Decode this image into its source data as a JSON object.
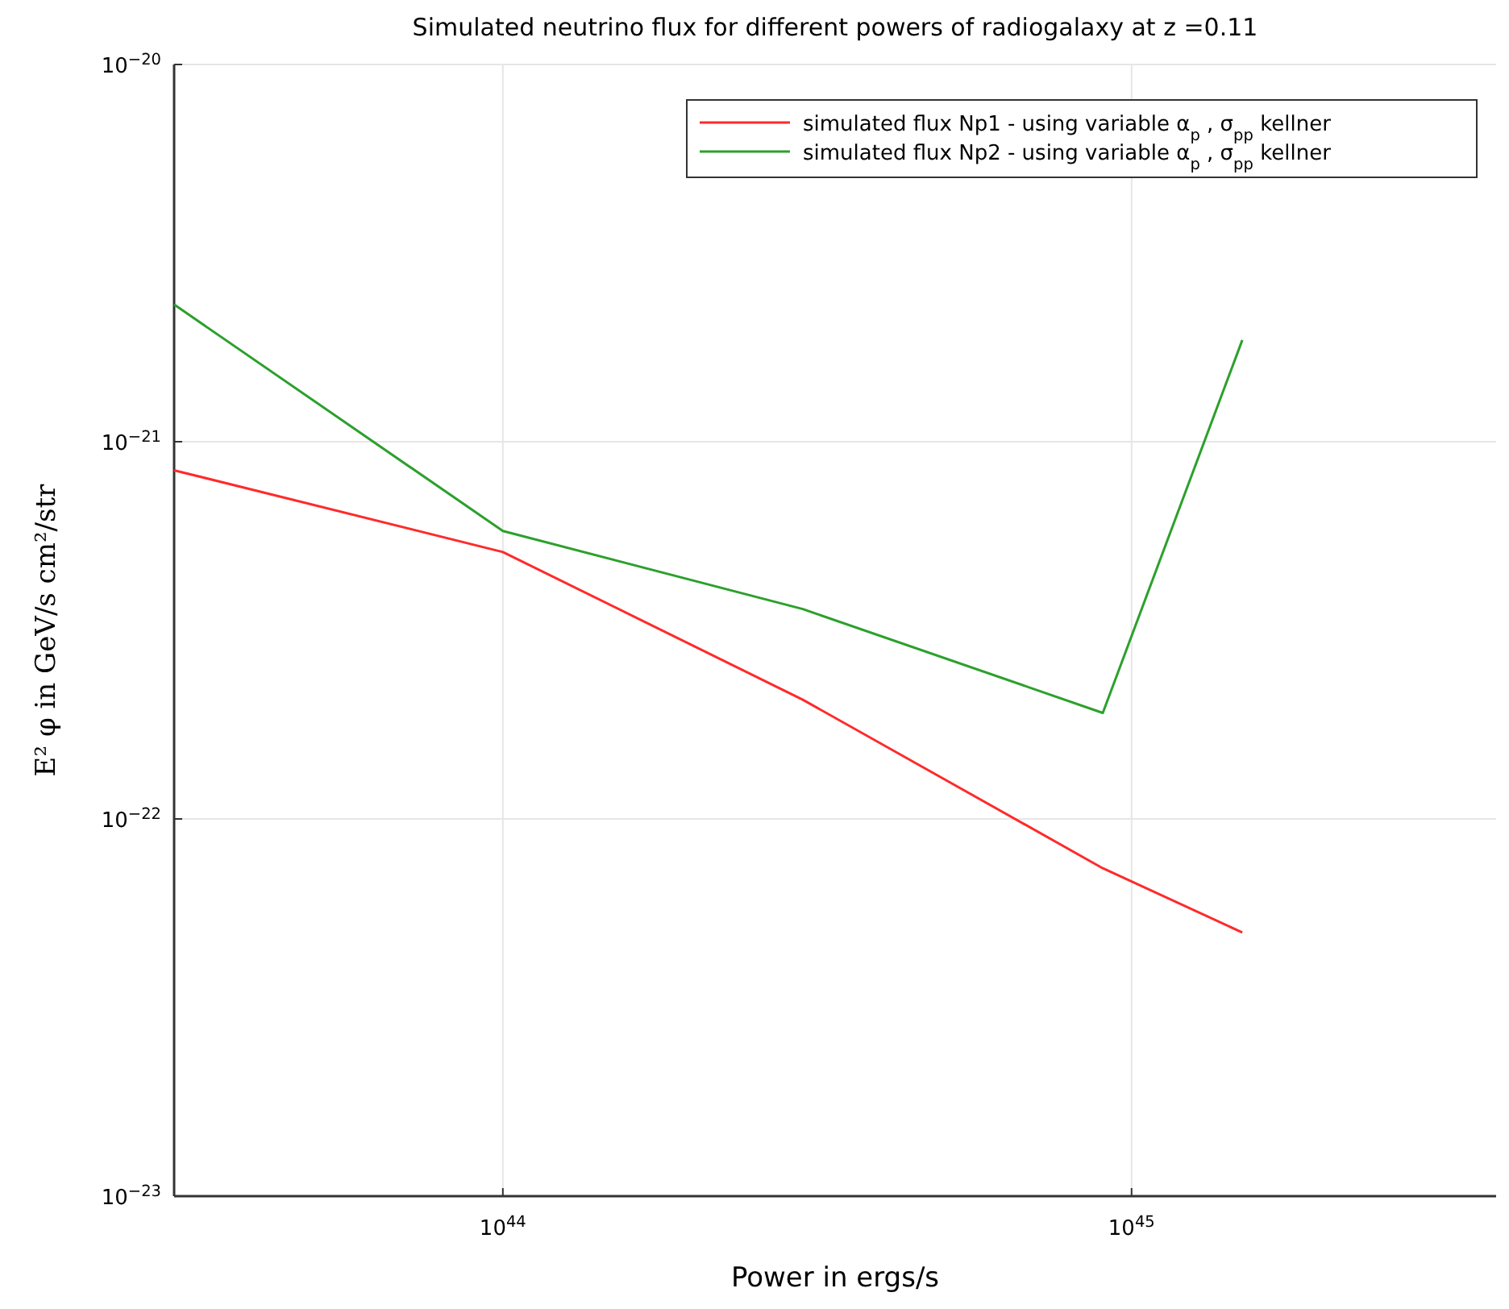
{
  "chart_data": {
    "type": "line",
    "title": "Simulated neutrino flux for different powers of radiogalaxy at z =0.11",
    "xlabel": "Power in ergs/s",
    "ylabel": "E² φ in GeV/s cm²/str",
    "log": "xy",
    "grid": true,
    "legend": "top right",
    "xlim": [
      3e+43,
      3.8e+45
    ],
    "xticks": [
      {
        "value": 1e+44,
        "label": "10$^{44}$"
      },
      {
        "value": 1e+45,
        "label": "10$^{45}$"
      }
    ],
    "ylim": [
      1e-23,
      1e-20
    ],
    "yticks": [
      {
        "value": 1e-23,
        "label": "10$^{−23}$"
      },
      {
        "value": 1e-22,
        "label": "10$^{−22}$"
      },
      {
        "value": 1e-21,
        "label": "10$^{−21}$"
      },
      {
        "value": 1e-20,
        "label": "10$^{−20}$"
      }
    ],
    "x": [
      3e+43,
      1e+44,
      3e+44,
      9e+44,
      1.5e+45
    ],
    "series": [
      {
        "name": "simulated flux Np1 - using variable α$_{p}$ , σ$_{pp}$ kellner",
        "color": "#ff2a2a",
        "values": [
          8.4e-22,
          5.1e-22,
          2.07e-22,
          7.4e-23,
          5e-23
        ]
      },
      {
        "name": "simulated flux Np2 - using variable α$_{p}$ , σ$_{pp}$ kellner",
        "color": "#2ca02c",
        "values": [
          2.31e-21,
          5.8e-22,
          3.6e-22,
          1.91e-22,
          1.86e-21
        ]
      }
    ]
  }
}
